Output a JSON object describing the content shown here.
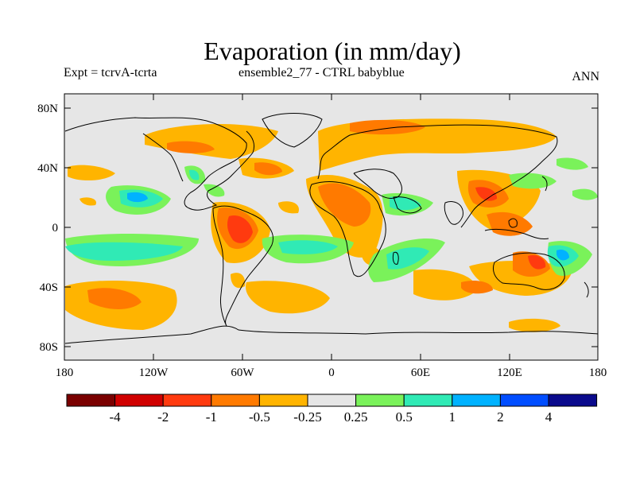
{
  "header": {
    "title": "Evaporation (in mm/day)",
    "left": "Expt = tcrvA-tcrta",
    "center": "ensemble2_77 - CTRL babyblue",
    "right": "ANN"
  },
  "map": {
    "background_color": "#e6e6e6",
    "lat_ticks": [
      "80N",
      "40N",
      "0",
      "40S",
      "80S"
    ],
    "lon_ticks": [
      "180",
      "120W",
      "60W",
      "0",
      "60E",
      "120E",
      "180"
    ]
  },
  "colorbar": {
    "colors": [
      "#7a0000",
      "#d00000",
      "#ff3a0f",
      "#ff7a00",
      "#ffb400",
      "#e6e6e6",
      "#7af25a",
      "#30eab5",
      "#00b2ff",
      "#004dff",
      "#0a0a8c"
    ],
    "labels": [
      "-4",
      "-2",
      "-1",
      "-0.5",
      "-0.25",
      "0.25",
      "0.5",
      "1",
      "2",
      "4"
    ]
  }
}
